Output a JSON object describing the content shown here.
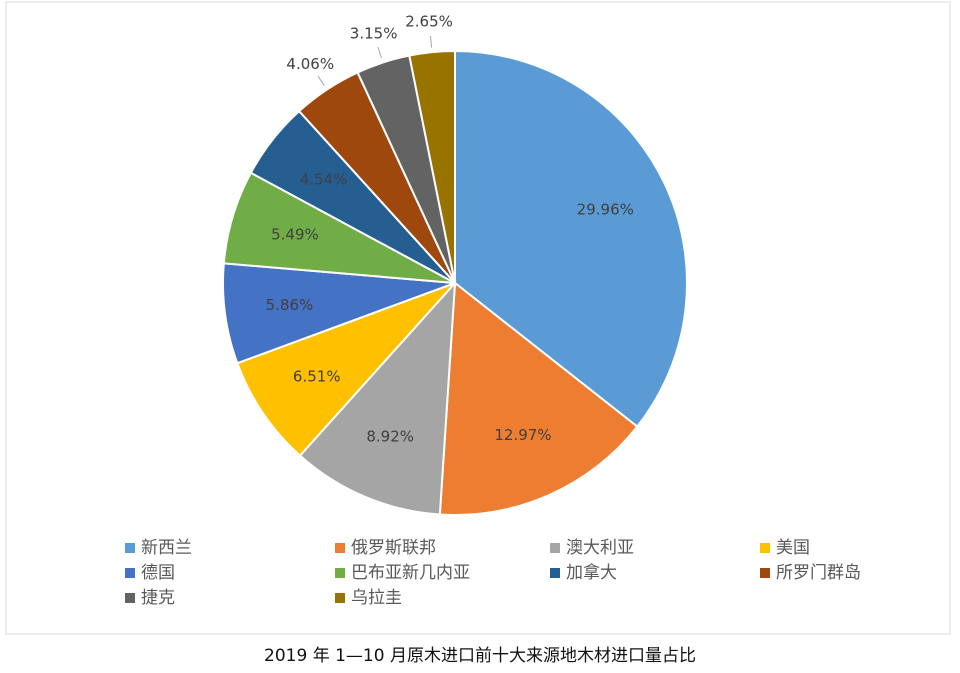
{
  "chart_data": {
    "type": "pie",
    "title": "2019 年 1—10 月原木进口前十大来源地木材进口量占比",
    "categories": [
      "新西兰",
      "俄罗斯联邦",
      "澳大利亚",
      "美国",
      "德国",
      "巴布亚新几内亚",
      "加拿大",
      "所罗门群岛",
      "捷克",
      "乌拉圭"
    ],
    "values": [
      29.96,
      12.97,
      8.92,
      6.51,
      5.86,
      5.49,
      4.54,
      4.06,
      3.15,
      2.65
    ],
    "value_labels": [
      "29.96%",
      "12.97%",
      "8.92%",
      "6.51%",
      "5.86%",
      "5.49%",
      "4.54%",
      "4.06%",
      "3.15%",
      "2.65%"
    ],
    "colors": [
      "#5b9bd5",
      "#ed7d31",
      "#a5a5a5",
      "#ffc000",
      "#4472c4",
      "#70ad47",
      "#255e91",
      "#9e480e",
      "#636363",
      "#997300"
    ],
    "legend": "bottom"
  }
}
